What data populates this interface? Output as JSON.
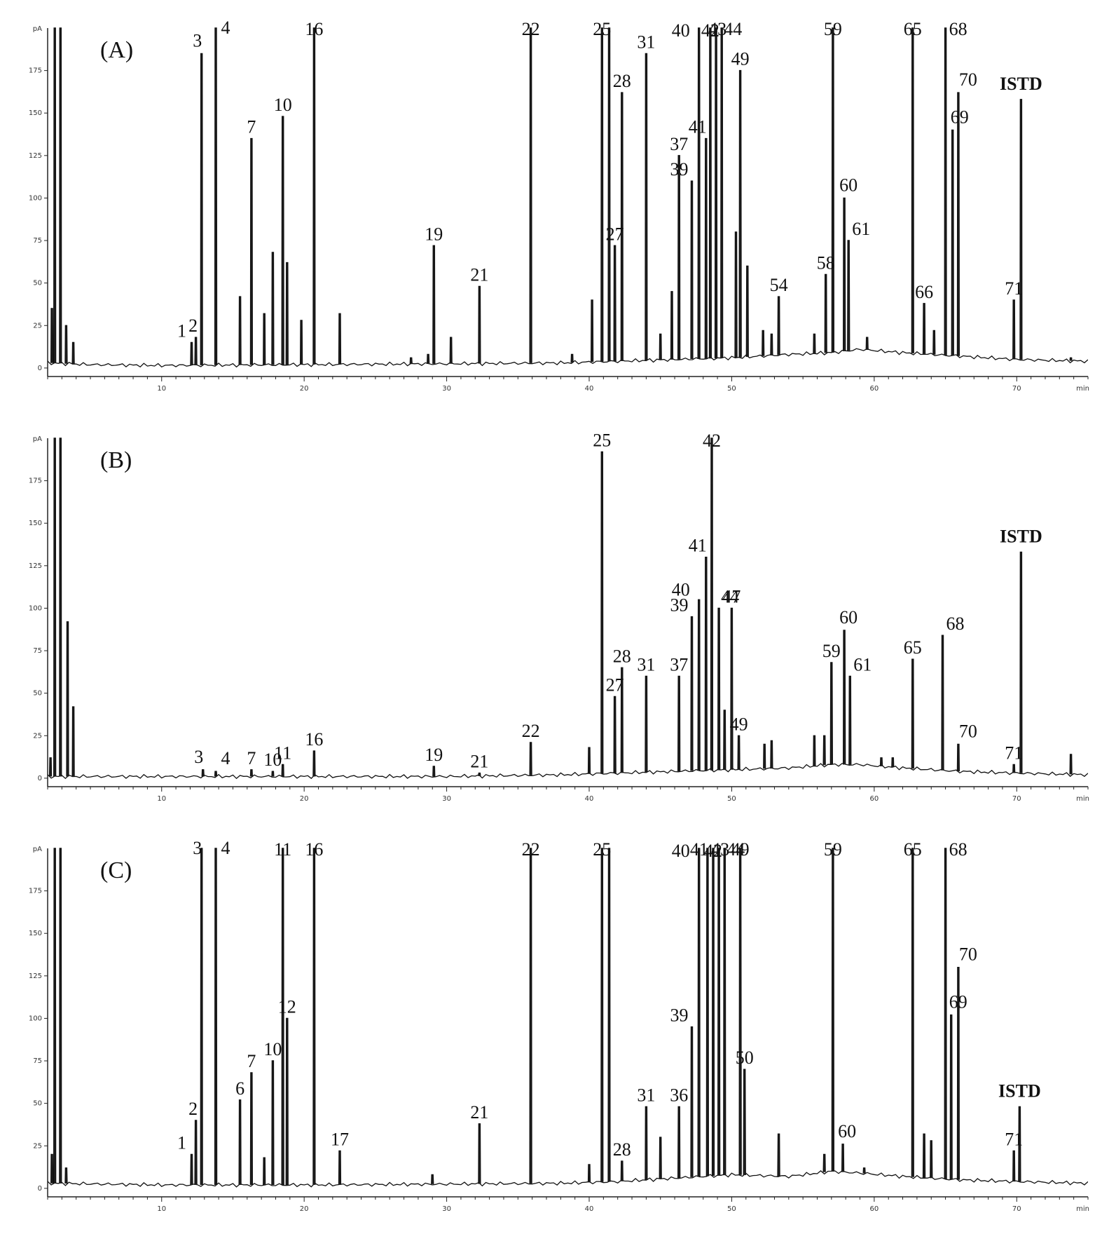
{
  "chart_data": [
    {
      "type": "line",
      "panel_label": "(A)",
      "y_unit": "pA",
      "x_unit": "min",
      "xlim": [
        2,
        75
      ],
      "ylim": [
        -5,
        200
      ],
      "x_ticks": [
        10,
        20,
        30,
        40,
        50,
        60,
        70
      ],
      "y_ticks": [
        0,
        25,
        50,
        75,
        100,
        125,
        150,
        175
      ],
      "baseline": [
        [
          2,
          3
        ],
        [
          5,
          2
        ],
        [
          10,
          1.5
        ],
        [
          20,
          2
        ],
        [
          30,
          2.5
        ],
        [
          38,
          3
        ],
        [
          42,
          4
        ],
        [
          46,
          5
        ],
        [
          50,
          6
        ],
        [
          54,
          8
        ],
        [
          57,
          9
        ],
        [
          59,
          11
        ],
        [
          62,
          9
        ],
        [
          66,
          7
        ],
        [
          70,
          5
        ],
        [
          75,
          4
        ]
      ],
      "peaks": [
        {
          "x": 2.5,
          "y": 200
        },
        {
          "x": 2.9,
          "y": 200
        },
        {
          "x": 2.3,
          "y": 35
        },
        {
          "x": 3.3,
          "y": 25
        },
        {
          "x": 3.8,
          "y": 15
        },
        {
          "x": 12.1,
          "y": 15,
          "label": "1"
        },
        {
          "x": 12.4,
          "y": 18,
          "label": "2"
        },
        {
          "x": 12.8,
          "y": 185,
          "label": "3"
        },
        {
          "x": 13.8,
          "y": 200,
          "label": "4"
        },
        {
          "x": 15.5,
          "y": 42
        },
        {
          "x": 16.3,
          "y": 135,
          "label": "7"
        },
        {
          "x": 17.2,
          "y": 32
        },
        {
          "x": 17.8,
          "y": 68
        },
        {
          "x": 18.5,
          "y": 148,
          "label": "10"
        },
        {
          "x": 18.8,
          "y": 62
        },
        {
          "x": 19.8,
          "y": 28
        },
        {
          "x": 20.7,
          "y": 200,
          "label": "16"
        },
        {
          "x": 22.5,
          "y": 32
        },
        {
          "x": 27.5,
          "y": 6
        },
        {
          "x": 28.7,
          "y": 8
        },
        {
          "x": 29.1,
          "y": 72,
          "label": "19"
        },
        {
          "x": 30.3,
          "y": 18
        },
        {
          "x": 32.3,
          "y": 48,
          "label": "21"
        },
        {
          "x": 35.9,
          "y": 200,
          "label": "22"
        },
        {
          "x": 38.8,
          "y": 8
        },
        {
          "x": 40.2,
          "y": 40
        },
        {
          "x": 40.9,
          "y": 200,
          "label": "25"
        },
        {
          "x": 41.4,
          "y": 200
        },
        {
          "x": 41.8,
          "y": 72,
          "label": "27"
        },
        {
          "x": 42.3,
          "y": 162,
          "label": "28"
        },
        {
          "x": 44.0,
          "y": 185,
          "label": "31"
        },
        {
          "x": 45.0,
          "y": 20
        },
        {
          "x": 45.8,
          "y": 45
        },
        {
          "x": 46.3,
          "y": 125,
          "label": "37"
        },
        {
          "x": 47.2,
          "y": 110,
          "label": "39"
        },
        {
          "x": 47.7,
          "y": 200,
          "label": "40"
        },
        {
          "x": 48.2,
          "y": 135,
          "label": "41"
        },
        {
          "x": 48.5,
          "y": 200,
          "label": "42"
        },
        {
          "x": 48.9,
          "y": 200,
          "label": "43"
        },
        {
          "x": 49.3,
          "y": 200,
          "label": "44"
        },
        {
          "x": 50.3,
          "y": 80
        },
        {
          "x": 50.6,
          "y": 175,
          "label": "49"
        },
        {
          "x": 51.1,
          "y": 60
        },
        {
          "x": 52.2,
          "y": 22
        },
        {
          "x": 52.8,
          "y": 20
        },
        {
          "x": 53.3,
          "y": 42,
          "label": "54"
        },
        {
          "x": 55.8,
          "y": 20
        },
        {
          "x": 56.6,
          "y": 55,
          "label": "58"
        },
        {
          "x": 57.1,
          "y": 200,
          "label": "59"
        },
        {
          "x": 57.9,
          "y": 100,
          "label": "60"
        },
        {
          "x": 58.2,
          "y": 75,
          "label": "61"
        },
        {
          "x": 59.5,
          "y": 18
        },
        {
          "x": 62.7,
          "y": 200,
          "label": "65"
        },
        {
          "x": 63.5,
          "y": 38,
          "label": "66"
        },
        {
          "x": 64.2,
          "y": 22
        },
        {
          "x": 65.0,
          "y": 200,
          "label": "68"
        },
        {
          "x": 65.5,
          "y": 140,
          "label": "69"
        },
        {
          "x": 65.9,
          "y": 162,
          "label": "70"
        },
        {
          "x": 69.8,
          "y": 40,
          "label": "71"
        },
        {
          "x": 70.3,
          "y": 158,
          "label": "ISTD"
        },
        {
          "x": 73.8,
          "y": 6
        }
      ]
    },
    {
      "type": "line",
      "panel_label": "(B)",
      "y_unit": "pA",
      "x_unit": "min",
      "xlim": [
        2,
        75
      ],
      "ylim": [
        -5,
        200
      ],
      "x_ticks": [
        10,
        20,
        30,
        40,
        50,
        60,
        70
      ],
      "y_ticks": [
        0,
        25,
        50,
        75,
        100,
        125,
        150,
        175
      ],
      "baseline": [
        [
          2,
          1
        ],
        [
          10,
          1
        ],
        [
          20,
          1
        ],
        [
          30,
          1
        ],
        [
          38,
          2
        ],
        [
          42,
          3
        ],
        [
          46,
          4
        ],
        [
          50,
          5
        ],
        [
          54,
          6
        ],
        [
          57,
          8
        ],
        [
          59,
          8
        ],
        [
          62,
          6
        ],
        [
          66,
          4
        ],
        [
          70,
          3
        ],
        [
          75,
          2
        ]
      ],
      "peaks": [
        {
          "x": 2.5,
          "y": 200
        },
        {
          "x": 2.9,
          "y": 200
        },
        {
          "x": 3.4,
          "y": 92
        },
        {
          "x": 3.8,
          "y": 42
        },
        {
          "x": 2.2,
          "y": 12
        },
        {
          "x": 12.9,
          "y": 5,
          "label": "3"
        },
        {
          "x": 13.8,
          "y": 4,
          "label": "4"
        },
        {
          "x": 16.3,
          "y": 5,
          "label": "7"
        },
        {
          "x": 17.8,
          "y": 4,
          "label": "10"
        },
        {
          "x": 18.5,
          "y": 8,
          "label": "11"
        },
        {
          "x": 20.7,
          "y": 16,
          "label": "16"
        },
        {
          "x": 29.1,
          "y": 7,
          "label": "19"
        },
        {
          "x": 32.3,
          "y": 3,
          "label": "21"
        },
        {
          "x": 35.9,
          "y": 21,
          "label": "22"
        },
        {
          "x": 40.0,
          "y": 18
        },
        {
          "x": 40.9,
          "y": 192,
          "label": "25"
        },
        {
          "x": 41.8,
          "y": 48,
          "label": "27"
        },
        {
          "x": 42.3,
          "y": 65,
          "label": "28"
        },
        {
          "x": 44.0,
          "y": 60,
          "label": "31"
        },
        {
          "x": 46.3,
          "y": 60,
          "label": "37"
        },
        {
          "x": 47.2,
          "y": 95,
          "label": "39"
        },
        {
          "x": 47.7,
          "y": 105,
          "label": "40"
        },
        {
          "x": 48.2,
          "y": 130,
          "label": "41"
        },
        {
          "x": 48.6,
          "y": 200,
          "label": "42"
        },
        {
          "x": 49.1,
          "y": 100,
          "label": "44"
        },
        {
          "x": 49.5,
          "y": 40
        },
        {
          "x": 50.0,
          "y": 100,
          "label": "47"
        },
        {
          "x": 50.5,
          "y": 25,
          "label": "49"
        },
        {
          "x": 52.3,
          "y": 20
        },
        {
          "x": 52.8,
          "y": 22
        },
        {
          "x": 55.8,
          "y": 25
        },
        {
          "x": 56.5,
          "y": 25
        },
        {
          "x": 57.0,
          "y": 68,
          "label": "59"
        },
        {
          "x": 57.9,
          "y": 87,
          "label": "60"
        },
        {
          "x": 58.3,
          "y": 60,
          "label": "61"
        },
        {
          "x": 60.5,
          "y": 12
        },
        {
          "x": 61.3,
          "y": 12
        },
        {
          "x": 62.7,
          "y": 70,
          "label": "65"
        },
        {
          "x": 64.8,
          "y": 84,
          "label": "68"
        },
        {
          "x": 65.9,
          "y": 20,
          "label": "70"
        },
        {
          "x": 69.8,
          "y": 8,
          "label": "71"
        },
        {
          "x": 70.3,
          "y": 133,
          "label": "ISTD"
        },
        {
          "x": 73.8,
          "y": 14
        }
      ]
    },
    {
      "type": "line",
      "panel_label": "(C)",
      "y_unit": "pA",
      "x_unit": "min",
      "xlim": [
        2,
        75
      ],
      "ylim": [
        -5,
        200
      ],
      "x_ticks": [
        10,
        20,
        30,
        40,
        50,
        60,
        70
      ],
      "y_ticks": [
        0,
        25,
        50,
        75,
        100,
        125,
        150,
        175
      ],
      "baseline": [
        [
          2,
          3
        ],
        [
          10,
          2
        ],
        [
          20,
          2
        ],
        [
          30,
          2.5
        ],
        [
          38,
          3
        ],
        [
          42,
          4
        ],
        [
          46,
          6
        ],
        [
          50,
          8
        ],
        [
          54,
          7
        ],
        [
          57,
          10
        ],
        [
          59,
          9
        ],
        [
          62,
          7
        ],
        [
          66,
          5
        ],
        [
          70,
          4
        ],
        [
          75,
          3
        ]
      ],
      "peaks": [
        {
          "x": 2.5,
          "y": 200
        },
        {
          "x": 2.9,
          "y": 200
        },
        {
          "x": 2.3,
          "y": 20
        },
        {
          "x": 3.3,
          "y": 12
        },
        {
          "x": 12.1,
          "y": 20,
          "label": "1"
        },
        {
          "x": 12.4,
          "y": 40,
          "label": "2"
        },
        {
          "x": 12.8,
          "y": 200,
          "label": "3"
        },
        {
          "x": 13.8,
          "y": 200,
          "label": "4"
        },
        {
          "x": 15.5,
          "y": 52,
          "label": "6"
        },
        {
          "x": 16.3,
          "y": 68,
          "label": "7"
        },
        {
          "x": 17.2,
          "y": 18
        },
        {
          "x": 17.8,
          "y": 75,
          "label": "10"
        },
        {
          "x": 18.5,
          "y": 200,
          "label": "11"
        },
        {
          "x": 18.8,
          "y": 100,
          "label": "12"
        },
        {
          "x": 20.7,
          "y": 200,
          "label": "16"
        },
        {
          "x": 22.5,
          "y": 22,
          "label": "17"
        },
        {
          "x": 29.0,
          "y": 8
        },
        {
          "x": 32.3,
          "y": 38,
          "label": "21"
        },
        {
          "x": 35.9,
          "y": 200,
          "label": "22"
        },
        {
          "x": 40.0,
          "y": 14
        },
        {
          "x": 40.9,
          "y": 200,
          "label": "25"
        },
        {
          "x": 41.4,
          "y": 200
        },
        {
          "x": 42.3,
          "y": 16,
          "label": "28"
        },
        {
          "x": 44.0,
          "y": 48,
          "label": "31"
        },
        {
          "x": 45.0,
          "y": 30
        },
        {
          "x": 46.3,
          "y": 48,
          "label": "36"
        },
        {
          "x": 47.2,
          "y": 95,
          "label": "39"
        },
        {
          "x": 47.7,
          "y": 200,
          "label": "40"
        },
        {
          "x": 48.3,
          "y": 200,
          "label": "41"
        },
        {
          "x": 48.7,
          "y": 200,
          "label": "42"
        },
        {
          "x": 49.1,
          "y": 200,
          "label": "43"
        },
        {
          "x": 49.5,
          "y": 200,
          "label": "44"
        },
        {
          "x": 50.6,
          "y": 200,
          "label": "49"
        },
        {
          "x": 50.9,
          "y": 70,
          "label": "50"
        },
        {
          "x": 53.3,
          "y": 32
        },
        {
          "x": 56.5,
          "y": 20
        },
        {
          "x": 57.1,
          "y": 200,
          "label": "59"
        },
        {
          "x": 57.8,
          "y": 26,
          "label": "60"
        },
        {
          "x": 59.3,
          "y": 12
        },
        {
          "x": 62.7,
          "y": 200,
          "label": "65"
        },
        {
          "x": 63.5,
          "y": 32
        },
        {
          "x": 64.0,
          "y": 28
        },
        {
          "x": 65.0,
          "y": 200,
          "label": "68"
        },
        {
          "x": 65.4,
          "y": 102,
          "label": "69"
        },
        {
          "x": 65.9,
          "y": 130,
          "label": "70"
        },
        {
          "x": 69.8,
          "y": 22,
          "label": "71"
        },
        {
          "x": 70.2,
          "y": 48,
          "label": "ISTD"
        }
      ]
    }
  ]
}
